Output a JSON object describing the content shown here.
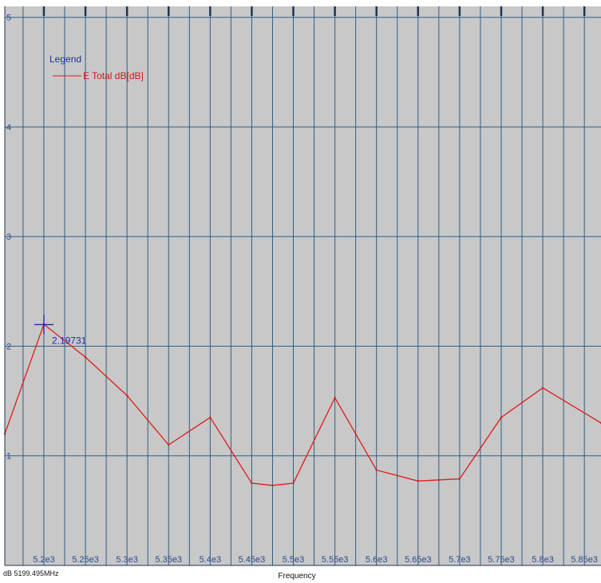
{
  "chart_data": {
    "type": "line",
    "xlabel": "Frequency",
    "ylabel": "",
    "xlim": [
      5153,
      5870
    ],
    "ylim": [
      0,
      5.1
    ],
    "x_ticks": [
      5200,
      5250,
      5300,
      5350,
      5400,
      5450,
      5500,
      5550,
      5600,
      5650,
      5700,
      5750,
      5800,
      5850
    ],
    "x_tick_labels": [
      "5.2e3",
      "5.25e3",
      "5.3e3",
      "5.35e3",
      "5.4e3",
      "5.45e3",
      "5.5e3",
      "5.55e3",
      "5.6e3",
      "5.65e3",
      "5.7e3",
      "5.75e3",
      "5.8e3",
      "5.85e3"
    ],
    "y_ticks": [
      1,
      2,
      3,
      4,
      5
    ],
    "y_tick_labels": [
      "1",
      "2",
      "3",
      "4",
      "5"
    ],
    "grid": true,
    "legend": {
      "title": "Legend",
      "position": "top-left"
    },
    "series": [
      {
        "name": "E Total dB[dB]",
        "color": "#e01a1a",
        "x": [
          5153,
          5200,
          5250,
          5300,
          5350,
          5400,
          5450,
          5475,
          5500,
          5550,
          5600,
          5650,
          5675,
          5700,
          5750,
          5800,
          5870
        ],
        "y": [
          1.2,
          2.2,
          1.9,
          1.55,
          1.1,
          1.35,
          0.75,
          0.73,
          0.75,
          1.53,
          0.87,
          0.77,
          0.78,
          0.79,
          1.35,
          1.62,
          1.3
        ]
      }
    ],
    "markers": [
      {
        "x": 5200,
        "y": 2.19731,
        "label": "2.19731",
        "color": "#1c2fa0"
      }
    ]
  },
  "status_bar": {
    "readout": "dB 5199.495MHz"
  }
}
